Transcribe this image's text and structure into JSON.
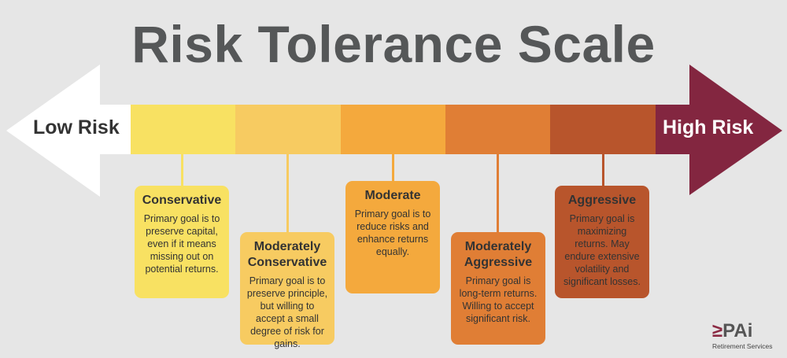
{
  "title": "Risk Tolerance Scale",
  "scale": {
    "low_label": "Low Risk",
    "high_label": "High Risk",
    "left_arrow_color": "#ffffff",
    "right_arrow_color": "#832640",
    "segment_colors": [
      "#f8e162",
      "#f7cb61",
      "#f4a93d",
      "#e07e35",
      "#b8552c"
    ]
  },
  "levels": [
    {
      "title": "Conservative",
      "desc": "Primary goal is to preserve capital, even if it means missing out on potential returns.",
      "color": "#f8e162"
    },
    {
      "title": "Moderately Conservative",
      "desc": "Primary goal is to preserve principle, but willing to accept a small degree of risk for gains.",
      "color": "#f7cb61"
    },
    {
      "title": "Moderate",
      "desc": "Primary goal is to reduce risks and enhance returns equally.",
      "color": "#f4a93d"
    },
    {
      "title": "Moderately Aggressive",
      "desc": "Primary goal is long-term returns. Willing to accept significant risk.",
      "color": "#e07e35"
    },
    {
      "title": "Aggressive",
      "desc": "Primary goal is maximizing returns. May endure extensive volatility and significant losses.",
      "color": "#b8552c"
    }
  ],
  "logo": {
    "mark": "≥",
    "name": "PAi",
    "subtitle": "Retirement Services"
  }
}
